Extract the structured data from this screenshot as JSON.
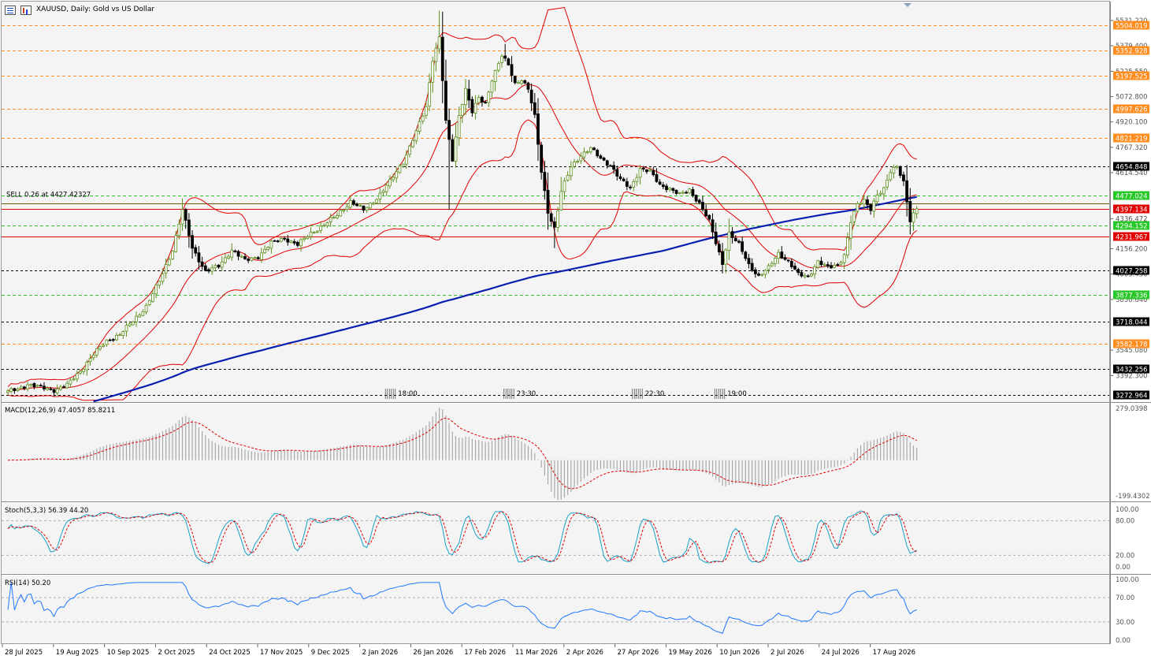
{
  "header": {
    "title": "XAUUSD, Daily:  Gold vs US Dollar"
  },
  "colors": {
    "background": "#f4f4f4",
    "candle_up": "#5d8f1f",
    "candle_down": "#000000",
    "bollinger": "#e00000",
    "ma200": "#0a1eb0",
    "macd_hist": "#a8a8a8",
    "macd_signal": "#e00000",
    "stoch_main": "#1aa0c8",
    "stoch_signal": "#e00000",
    "rsi_line": "#1e78ff",
    "orange_level": "#ff8c1e",
    "green_level": "#28c828",
    "red_level": "#e00000",
    "black_level": "#000000"
  },
  "chart_data": [
    {
      "type": "candlestick",
      "symbol": "XAUUSD",
      "timeframe": "Daily",
      "ylim": [
        3232.5,
        5593.0
      ],
      "price_scale": [
        "5531.220",
        "5379.400",
        "5225.550",
        "5072.800",
        "4920.100",
        "4767.320",
        "4614.540",
        "4336.472",
        "4156.200",
        "4003.430",
        "3850.640",
        "3545.080",
        "3392.300"
      ],
      "x_labels": [
        "28 Jul 2025",
        "19 Aug 2025",
        "10 Sep 2025",
        "2 Oct 2025",
        "24 Oct 2025",
        "17 Nov 2025",
        "9 Dec 2025",
        "2 Jan 2026",
        "26 Jan 2026",
        "17 Feb 2026",
        "11 Mar 2026",
        "2 Apr 2026",
        "27 Apr 2026",
        "19 May 2026",
        "10 Jun 2026",
        "2 Jul 2026",
        "24 Jul 2026",
        "17 Aug 2026"
      ],
      "close_anchors": [
        [
          0,
          3295
        ],
        [
          3,
          3310
        ],
        [
          6,
          3340
        ],
        [
          10,
          3320
        ],
        [
          14,
          3305
        ],
        [
          18,
          3335
        ],
        [
          22,
          3420
        ],
        [
          26,
          3520
        ],
        [
          30,
          3600
        ],
        [
          34,
          3640
        ],
        [
          38,
          3720
        ],
        [
          42,
          3810
        ],
        [
          46,
          3960
        ],
        [
          50,
          4150
        ],
        [
          53,
          4390
        ],
        [
          56,
          4160
        ],
        [
          60,
          4020
        ],
        [
          64,
          4050
        ],
        [
          68,
          4150
        ],
        [
          72,
          4085
        ],
        [
          76,
          4110
        ],
        [
          80,
          4190
        ],
        [
          84,
          4220
        ],
        [
          88,
          4180
        ],
        [
          92,
          4250
        ],
        [
          96,
          4300
        ],
        [
          100,
          4360
        ],
        [
          104,
          4440
        ],
        [
          108,
          4390
        ],
        [
          112,
          4460
        ],
        [
          116,
          4560
        ],
        [
          120,
          4680
        ],
        [
          124,
          4860
        ],
        [
          127,
          5010
        ],
        [
          129,
          5300
        ],
        [
          131,
          5430
        ],
        [
          133,
          4920
        ],
        [
          135,
          4690
        ],
        [
          137,
          4960
        ],
        [
          139,
          5120
        ],
        [
          141,
          4980
        ],
        [
          143,
          5060
        ],
        [
          145,
          5030
        ],
        [
          147,
          5180
        ],
        [
          150,
          5320
        ],
        [
          152,
          5260
        ],
        [
          154,
          5150
        ],
        [
          156,
          5180
        ],
        [
          158,
          5120
        ],
        [
          160,
          4950
        ],
        [
          162,
          4620
        ],
        [
          164,
          4380
        ],
        [
          166,
          4280
        ],
        [
          168,
          4500
        ],
        [
          171,
          4650
        ],
        [
          174,
          4720
        ],
        [
          177,
          4760
        ],
        [
          180,
          4700
        ],
        [
          183,
          4660
        ],
        [
          186,
          4570
        ],
        [
          189,
          4520
        ],
        [
          192,
          4640
        ],
        [
          195,
          4620
        ],
        [
          198,
          4540
        ],
        [
          201,
          4520
        ],
        [
          204,
          4480
        ],
        [
          207,
          4510
        ],
        [
          210,
          4430
        ],
        [
          213,
          4320
        ],
        [
          215,
          4190
        ],
        [
          217,
          4070
        ],
        [
          219,
          4250
        ],
        [
          222,
          4180
        ],
        [
          225,
          4060
        ],
        [
          228,
          3990
        ],
        [
          231,
          4040
        ],
        [
          234,
          4130
        ],
        [
          237,
          4080
        ],
        [
          240,
          4000
        ],
        [
          243,
          3990
        ],
        [
          246,
          4080
        ],
        [
          249,
          4040
        ],
        [
          252,
          4060
        ],
        [
          254,
          4120
        ],
        [
          256,
          4320
        ],
        [
          258,
          4420
        ],
        [
          260,
          4450
        ],
        [
          262,
          4400
        ],
        [
          264,
          4480
        ],
        [
          266,
          4510
        ],
        [
          268,
          4620
        ],
        [
          270,
          4660
        ],
        [
          272,
          4560
        ],
        [
          274,
          4320
        ],
        [
          276,
          4395
        ]
      ],
      "levels": [
        {
          "label": "5504.019",
          "value": 5504.019,
          "color": "orange"
        },
        {
          "label": "5352.928",
          "value": 5352.928,
          "color": "orange"
        },
        {
          "label": "5197.525",
          "value": 5197.525,
          "color": "orange"
        },
        {
          "label": "4997.626",
          "value": 4997.626,
          "color": "orange"
        },
        {
          "label": "4821.219",
          "value": 4821.219,
          "color": "orange"
        },
        {
          "label": "4654.848",
          "value": 4654.848,
          "color": "black"
        },
        {
          "label": "4477.024",
          "value": 4477.024,
          "color": "green"
        },
        {
          "label": "4397.134",
          "value": 4397.134,
          "color": "red"
        },
        {
          "label": "4294.152",
          "value": 4294.152,
          "color": "green"
        },
        {
          "label": "4231.967",
          "value": 4231.967,
          "color": "red"
        },
        {
          "label": "4027.258",
          "value": 4027.258,
          "color": "black"
        },
        {
          "label": "3877.336",
          "value": 3877.336,
          "color": "green"
        },
        {
          "label": "3718.044",
          "value": 3718.044,
          "color": "black"
        },
        {
          "label": "3582.178",
          "value": 3582.178,
          "color": "orange"
        },
        {
          "label": "3432.256",
          "value": 3432.256,
          "color": "black"
        },
        {
          "label": "3272.964",
          "value": 3272.964,
          "color": "black"
        }
      ],
      "order": {
        "label": "SELL 0.26 at 4427.42327",
        "value": 4427.42327
      },
      "event_labels": [
        {
          "label": "18:00",
          "bar": 118
        },
        {
          "label": "23:30",
          "bar": 154
        },
        {
          "label": "22:30",
          "bar": 193
        },
        {
          "label": "19:00",
          "bar": 218
        }
      ],
      "indicators": [
        "Bollinger Bands (red)",
        "Moving Average 200 (blue)"
      ]
    },
    {
      "type": "histogram",
      "title": "MACD(12,26,9) 47.4057 85.8211",
      "ylim": [
        -199.4302,
        279.0398
      ],
      "scale_labels": [
        "279.0398",
        "-199.4302"
      ],
      "series": [
        {
          "name": "MACD"
        },
        {
          "name": "Signal"
        }
      ]
    },
    {
      "type": "line",
      "title": "Stoch(5,3,3) 56.39 44.20",
      "ylim": [
        0,
        100
      ],
      "scale_labels": [
        "100.00",
        "80.00",
        "20.00",
        "0.00"
      ],
      "levels": [
        80,
        20
      ],
      "series": [
        {
          "name": "%K"
        },
        {
          "name": "%D"
        }
      ]
    },
    {
      "type": "line",
      "title": "RSI(14) 50.20",
      "ylim": [
        0,
        100
      ],
      "scale_labels": [
        "100.00",
        "70.00",
        "30.00",
        "0.00"
      ],
      "levels": [
        70,
        30
      ],
      "series": [
        {
          "name": "RSI"
        }
      ]
    }
  ]
}
